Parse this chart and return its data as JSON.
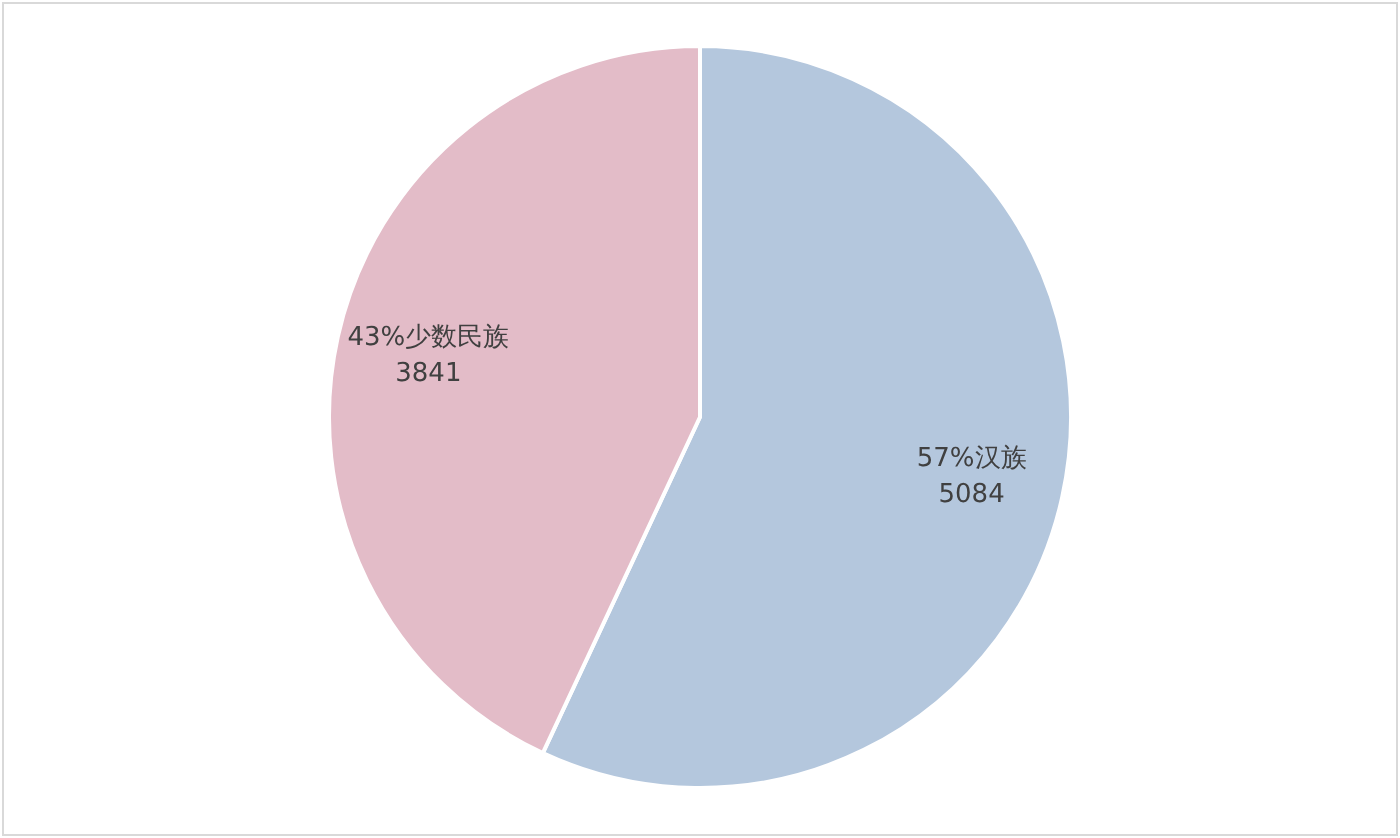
{
  "chart_data": {
    "type": "pie",
    "categories": [
      "汉族",
      "少数民族"
    ],
    "values": [
      5084,
      3841
    ],
    "colors": [
      "#b4c7dd",
      "#e3bcc8"
    ],
    "annotations": [
      "57%",
      "43%"
    ],
    "data_labels": true,
    "legend": false
  }
}
